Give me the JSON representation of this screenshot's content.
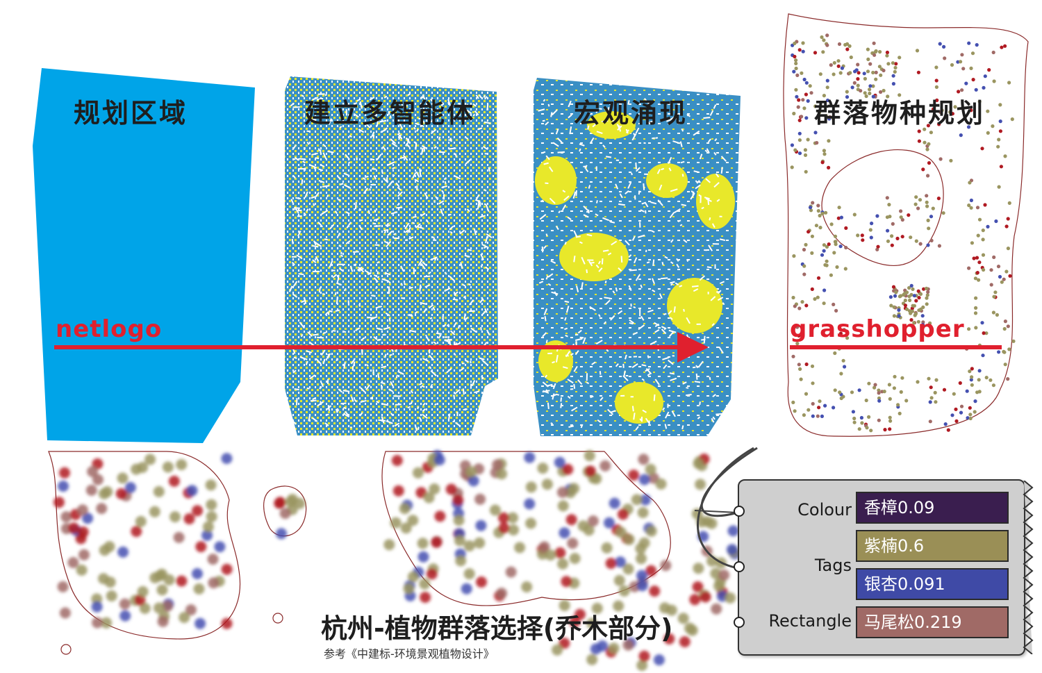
{
  "stages": [
    {
      "title": "规划区域"
    },
    {
      "title": "建立多智能体"
    },
    {
      "title": "宏观涌现"
    },
    {
      "title": "群落物种规划"
    }
  ],
  "tools": {
    "left": "netlogo",
    "right": "grasshopper"
  },
  "caption": {
    "title": "杭州-植物群落选择(乔木部分)",
    "reference": "参考《中建标-环境景观植物设计》"
  },
  "gh_component": {
    "inputs": [
      "Colour",
      "Tags",
      "Rectangle"
    ],
    "tags": [
      {
        "label": "香樟0.09",
        "color": "#3a1e4f"
      },
      {
        "label": "紫楠0.6",
        "color": "#9a8f56"
      },
      {
        "label": "银杏0.091",
        "color": "#3f4aa6"
      },
      {
        "label": "马尾松0.219",
        "color": "#a06a66"
      }
    ]
  },
  "colors": {
    "planning_area": "#00a4e8",
    "agent_blue": "#3a8fc4",
    "agent_yellow": "#e8e82a",
    "arrow_red": "#e0202e",
    "tree_olive": "#9a9560",
    "tree_red": "#b01a22",
    "tree_blue": "#4450b0"
  }
}
